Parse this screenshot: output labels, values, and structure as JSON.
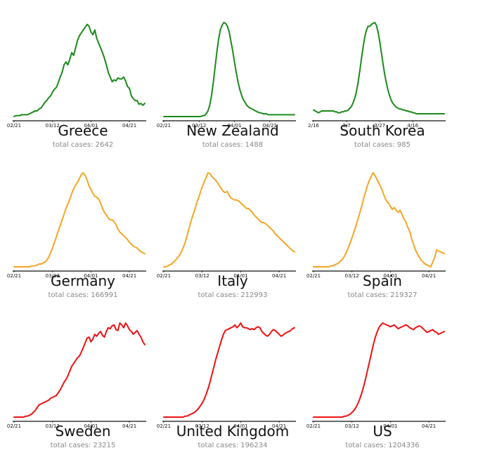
{
  "colors": {
    "green": "#1a8a1a",
    "orange": "#f5a623",
    "red": "#ee1111"
  },
  "chart_data": [
    {
      "type": "line",
      "title": "Greece",
      "subtitle": "total cases: 2642",
      "color": "green",
      "tick_labels": [
        "02/21",
        "03/12",
        "04/01",
        "04/21"
      ],
      "tick_at": [
        0,
        20,
        40,
        60
      ],
      "n": 69,
      "series": [
        {
          "values": [
            0,
            1,
            1,
            1,
            2,
            2,
            2,
            2,
            3,
            4,
            5,
            6,
            6,
            8,
            9,
            12,
            15,
            17,
            20,
            22,
            26,
            29,
            31,
            36,
            42,
            47,
            55,
            58,
            55,
            61,
            68,
            65,
            73,
            81,
            86,
            89,
            92,
            95,
            98,
            96,
            90,
            87,
            92,
            83,
            78,
            73,
            68,
            62,
            55,
            47,
            42,
            37,
            39,
            38,
            41,
            40,
            40,
            42,
            38,
            32,
            30,
            22,
            19,
            17,
            17,
            13,
            14,
            12,
            14
          ]
        }
      ]
    },
    {
      "type": "line",
      "title": "New Zealand",
      "subtitle": "total cases: 1488",
      "color": "green",
      "tick_labels": [
        "02/21",
        "03/12",
        "04/01",
        "04/21"
      ],
      "tick_at": [
        0,
        20,
        40,
        60
      ],
      "n": 75,
      "series": [
        {
          "values": [
            0,
            0,
            0,
            0,
            0,
            0,
            0,
            0,
            0,
            0,
            0,
            0,
            0,
            0,
            0,
            0,
            0,
            0,
            0,
            0,
            0,
            0,
            1,
            1,
            3,
            6,
            12,
            22,
            36,
            52,
            68,
            82,
            92,
            97,
            100,
            99,
            96,
            90,
            80,
            70,
            58,
            47,
            37,
            29,
            23,
            18,
            15,
            12,
            10,
            9,
            8,
            7,
            6,
            5,
            4,
            4,
            3,
            3,
            3,
            2,
            2,
            2,
            2,
            2,
            2,
            2,
            2,
            2,
            2,
            2,
            2,
            2,
            2,
            2,
            2
          ]
        }
      ]
    },
    {
      "type": "line",
      "title": "South Korea",
      "subtitle": "total cases: 985",
      "color": "green",
      "tick_labels": [
        "2/16",
        "3/7",
        "3/27",
        "4/16"
      ],
      "tick_at": [
        0,
        20,
        40,
        60
      ],
      "n": 80,
      "series": [
        {
          "values": [
            7,
            6,
            5,
            4,
            5,
            6,
            6,
            6,
            6,
            6,
            6,
            6,
            6,
            5,
            5,
            4,
            4,
            5,
            5,
            6,
            6,
            7,
            9,
            11,
            15,
            20,
            27,
            37,
            49,
            62,
            74,
            85,
            92,
            96,
            96,
            98,
            99,
            100,
            97,
            90,
            80,
            68,
            56,
            45,
            36,
            28,
            22,
            17,
            14,
            12,
            10,
            9,
            8,
            8,
            7,
            7,
            6,
            6,
            5,
            5,
            4,
            4,
            3,
            3,
            3,
            3,
            3,
            3,
            3,
            3,
            3,
            3,
            3,
            3,
            3,
            3,
            3,
            3,
            3,
            3
          ]
        }
      ]
    },
    {
      "type": "line",
      "title": "Germany",
      "subtitle": "total cases: 166991",
      "color": "orange",
      "tick_labels": [
        "02/21",
        "03/12",
        "04/01",
        "04/21"
      ],
      "tick_at": [
        0,
        20,
        40,
        60
      ],
      "n": 69,
      "series": [
        {
          "values": [
            0,
            0,
            0,
            0,
            0,
            0,
            0,
            0,
            0,
            1,
            1,
            1,
            2,
            3,
            3,
            4,
            5,
            7,
            10,
            15,
            20,
            26,
            32,
            38,
            44,
            50,
            56,
            62,
            67,
            72,
            78,
            83,
            87,
            90,
            94,
            98,
            100,
            97,
            92,
            86,
            82,
            78,
            75,
            74,
            72,
            68,
            62,
            58,
            55,
            52,
            50,
            50,
            48,
            45,
            40,
            37,
            35,
            33,
            31,
            29,
            26,
            24,
            22,
            21,
            20,
            18,
            16,
            15,
            14
          ]
        }
      ]
    },
    {
      "type": "line",
      "title": "Italy",
      "subtitle": "total cases: 212993",
      "color": "orange",
      "tick_labels": [
        "02/21",
        "03/12",
        "04/01",
        "04/21"
      ],
      "tick_at": [
        0,
        20,
        40,
        60
      ],
      "n": 69,
      "series": [
        {
          "values": [
            0,
            0,
            1,
            2,
            3,
            5,
            7,
            9,
            12,
            15,
            20,
            25,
            32,
            40,
            47,
            54,
            60,
            67,
            73,
            79,
            85,
            90,
            95,
            100,
            99,
            96,
            94,
            92,
            89,
            86,
            83,
            80,
            79,
            80,
            76,
            73,
            72,
            71,
            71,
            70,
            68,
            66,
            64,
            62,
            62,
            60,
            58,
            55,
            53,
            51,
            49,
            47,
            47,
            46,
            44,
            42,
            40,
            38,
            35,
            33,
            31,
            29,
            27,
            25,
            23,
            21,
            19,
            17,
            16
          ]
        }
      ]
    },
    {
      "type": "line",
      "title": "Spain",
      "subtitle": "total cases: 219327",
      "color": "orange",
      "tick_labels": [
        "02/21",
        "03/12",
        "04/01",
        "04/21"
      ],
      "tick_at": [
        0,
        20,
        40,
        60
      ],
      "n": 69,
      "series": [
        {
          "values": [
            0,
            0,
            0,
            0,
            0,
            0,
            0,
            0,
            0,
            1,
            1,
            2,
            3,
            4,
            6,
            8,
            11,
            15,
            20,
            25,
            31,
            37,
            43,
            50,
            57,
            64,
            72,
            79,
            86,
            92,
            96,
            100,
            97,
            93,
            89,
            85,
            80,
            74,
            70,
            68,
            64,
            61,
            63,
            60,
            58,
            60,
            56,
            51,
            48,
            42,
            38,
            30,
            24,
            18,
            14,
            10,
            7,
            5,
            3,
            2,
            1,
            0,
            5,
            10,
            18,
            17,
            16,
            15,
            14
          ]
        }
      ]
    },
    {
      "type": "line",
      "title": "Sweden",
      "subtitle": "total cases: 23215",
      "color": "red",
      "tick_labels": [
        "02/21",
        "03/12",
        "04/01",
        "04/21"
      ],
      "tick_at": [
        0,
        20,
        40,
        60
      ],
      "n": 69,
      "series": [
        {
          "values": [
            0,
            0,
            0,
            0,
            0,
            0,
            1,
            1,
            2,
            3,
            5,
            7,
            10,
            13,
            14,
            15,
            16,
            17,
            18,
            20,
            21,
            22,
            23,
            26,
            29,
            33,
            37,
            40,
            44,
            49,
            54,
            57,
            60,
            63,
            65,
            69,
            74,
            79,
            84,
            85,
            80,
            83,
            88,
            86,
            89,
            91,
            87,
            85,
            91,
            95,
            94,
            97,
            98,
            93,
            92,
            100,
            98,
            95,
            100,
            97,
            93,
            91,
            88,
            90,
            92,
            88,
            85,
            80,
            77
          ]
        }
      ]
    },
    {
      "type": "line",
      "title": "United Kingdom",
      "subtitle": "total cases: 196234",
      "color": "red",
      "tick_labels": [
        "02/21",
        "03/12",
        "04/01",
        "04/21"
      ],
      "tick_at": [
        0,
        20,
        40,
        60
      ],
      "n": 69,
      "series": [
        {
          "values": [
            0,
            0,
            0,
            0,
            0,
            0,
            0,
            0,
            0,
            0,
            0,
            1,
            1,
            2,
            3,
            4,
            5,
            7,
            9,
            12,
            15,
            19,
            24,
            30,
            37,
            45,
            53,
            61,
            68,
            75,
            82,
            88,
            92,
            93,
            94,
            95,
            96,
            98,
            95,
            97,
            100,
            96,
            95,
            95,
            94,
            93,
            94,
            93,
            95,
            96,
            95,
            91,
            89,
            87,
            86,
            88,
            91,
            93,
            92,
            90,
            88,
            86,
            87,
            89,
            90,
            91,
            92,
            94,
            95
          ]
        }
      ]
    },
    {
      "type": "line",
      "title": "US",
      "subtitle": "total cases: 1204336",
      "color": "red",
      "tick_labels": [
        "02/21",
        "03/12",
        "04/01",
        "04/21"
      ],
      "tick_at": [
        0,
        20,
        40,
        60
      ],
      "n": 69,
      "series": [
        {
          "values": [
            0,
            0,
            0,
            0,
            0,
            0,
            0,
            0,
            0,
            0,
            0,
            0,
            0,
            0,
            0,
            0,
            1,
            1,
            2,
            3,
            5,
            7,
            10,
            14,
            19,
            25,
            32,
            40,
            49,
            58,
            67,
            76,
            84,
            90,
            95,
            98,
            100,
            99,
            98,
            97,
            96,
            97,
            98,
            96,
            94,
            95,
            96,
            97,
            98,
            97,
            95,
            94,
            93,
            95,
            96,
            97,
            96,
            94,
            92,
            90,
            91,
            92,
            93,
            91,
            90,
            88,
            89,
            90,
            91
          ]
        }
      ]
    }
  ]
}
